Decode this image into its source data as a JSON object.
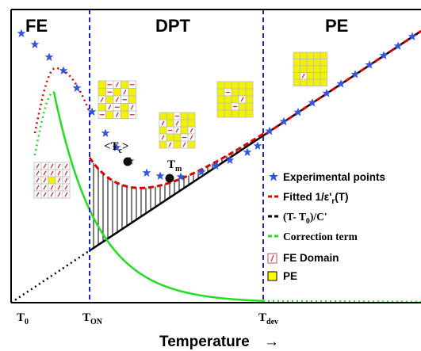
{
  "regions": {
    "fe": "FE",
    "dpt": "DPT",
    "pe": "PE"
  },
  "ticks": [
    {
      "main": "T",
      "sub": "0"
    },
    {
      "main": "T",
      "sub": "ON"
    },
    {
      "main": "T",
      "sub": "dev"
    }
  ],
  "annotations": {
    "tc": {
      "main": "<T",
      "sub": "c",
      "tail": ">"
    },
    "tm": {
      "main": "T",
      "sub": "m"
    }
  },
  "x_axis_label": "Temperature",
  "arrow_glyph": "→",
  "legend": [
    {
      "id": "experimental",
      "text": "Experimental points",
      "color": "#3355dd",
      "symbol": "star"
    },
    {
      "id": "fitted",
      "text": "Fitted 1/ε'",
      "sub": "r",
      "tail": "(T)",
      "color": "#e00000",
      "symbol": "dash"
    },
    {
      "id": "cw",
      "text": "(T- T",
      "sub": "0",
      "tail": ")/C'",
      "color": "#000000",
      "symbol": "dash"
    },
    {
      "id": "correction",
      "text": "Correction term",
      "color": "#22dd22",
      "symbol": "dash"
    },
    {
      "id": "fe_domain",
      "text": "FE Domain",
      "color": "#cc3333",
      "symbol": "fe-square"
    },
    {
      "id": "pe",
      "text": "PE",
      "color": "#ffff00",
      "symbol": "pe-square"
    }
  ],
  "colors": {
    "fitted": "#e00000",
    "correction": "#22dd22",
    "cw_line": "#000000",
    "boundary": "#1a22cc",
    "star": "#3355dd",
    "domain_fill": "#f2f200",
    "domain_border": "#aaaa00",
    "arrow": "#cc3333"
  },
  "icons": {
    "star": "star-icon",
    "fe_domain": "fe-domain-icon",
    "pe": "pe-square-icon"
  }
}
